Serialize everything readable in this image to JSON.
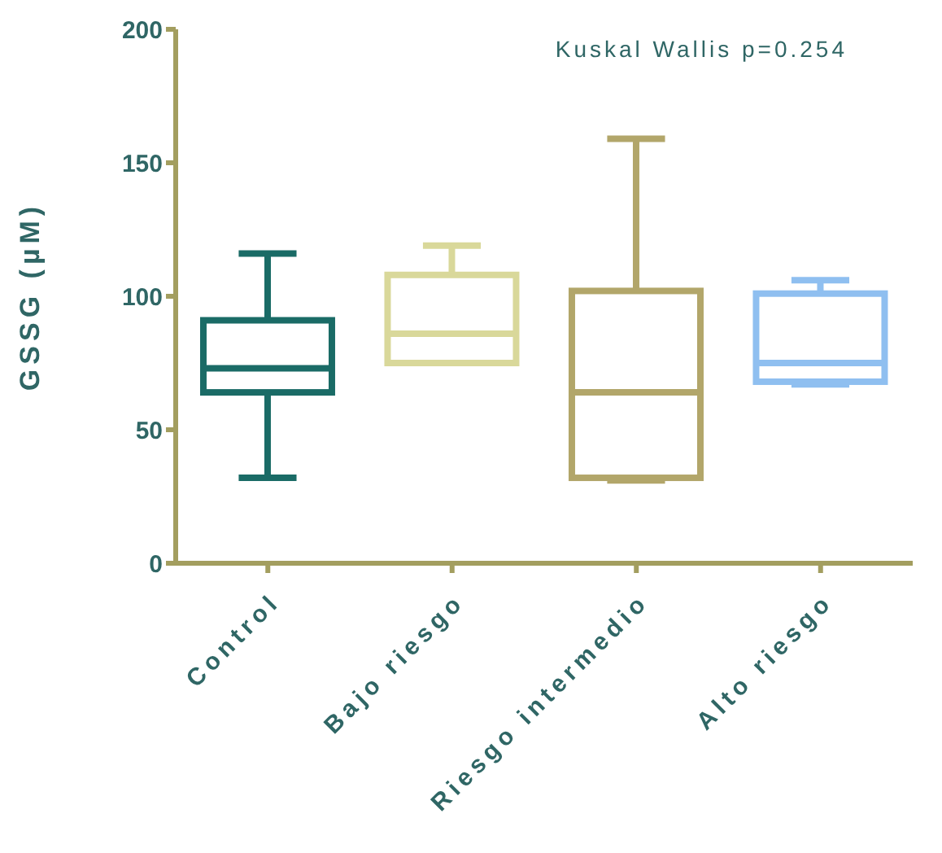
{
  "chart_data": {
    "type": "box",
    "ylabel": "GSSG (µM)",
    "categories": [
      "Control",
      "Bajo riesgo",
      "Riesgo intermedio",
      "Alto riesgo"
    ],
    "boxes": [
      {
        "low": 32,
        "q1": 64,
        "median": 73,
        "q3": 91,
        "high": 116
      },
      {
        "low": 75,
        "q1": 75,
        "median": 86,
        "q3": 108,
        "high": 119
      },
      {
        "low": 31,
        "q1": 32,
        "median": 64,
        "q3": 102,
        "high": 159
      },
      {
        "low": 67,
        "q1": 68,
        "median": 75,
        "q3": 101,
        "high": 106
      }
    ],
    "colors": [
      "#1a6b66",
      "#d9d89a",
      "#b2a66a",
      "#8fbff0"
    ],
    "ylim": [
      0,
      200
    ],
    "yticks": [
      0,
      50,
      100,
      150,
      200
    ],
    "annotations": [
      "Kuskal Wallis p=0.254"
    ]
  }
}
